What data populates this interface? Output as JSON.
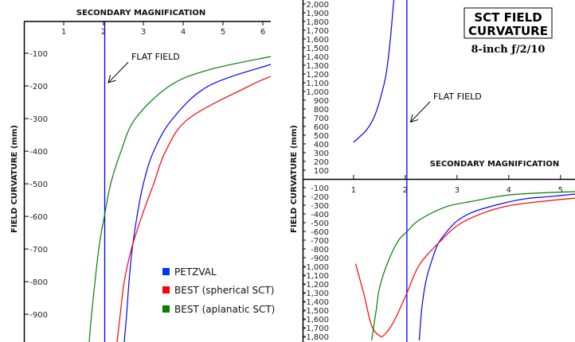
{
  "chart_data": [
    {
      "type": "line",
      "xlabel": "SECONDARY MAGNIFICATION",
      "ylabel": "FIELD CURVATURE (mm)",
      "xlim": [
        0,
        6.2
      ],
      "ylim": [
        -985,
        0
      ],
      "xticks": [
        1,
        2,
        3,
        4,
        5,
        6
      ],
      "xtick_labels": [
        "1",
        "2",
        "3",
        "4",
        "5",
        "6"
      ],
      "yticks": [
        -100,
        -200,
        -300,
        -400,
        -500,
        -600,
        -700,
        -800,
        -900
      ],
      "ytick_labels": [
        "-100",
        "-200",
        "-300",
        "-400",
        "-500",
        "-600",
        "-700",
        "-800",
        "-900"
      ],
      "grid": false,
      "flat_field_x": 2.03,
      "annotation": {
        "text": "FLAT FIELD",
        "x": 2.7,
        "y": -120,
        "arrow_to": [
          2.12,
          -190
        ]
      },
      "legend": {
        "position": "bottom-right",
        "entries": [
          "PETZVAL",
          "BEST (spherical SCT)",
          "BEST (aplanatic SCT)"
        ]
      },
      "series": [
        {
          "name": "PETZVAL",
          "color": "#0000ff",
          "branches": [
            {
              "x": [
                2.52,
                2.58,
                2.64,
                2.72,
                2.84,
                3.0,
                3.26,
                3.74,
                4.64,
                6.2
              ],
              "y": [
                -985,
                -900,
                -800,
                -700,
                -600,
                -500,
                -400,
                -300,
                -200,
                -134
              ]
            }
          ]
        },
        {
          "name": "BEST (spherical SCT)",
          "color": "#ff0000",
          "branches": [
            {
              "x": [
                2.34,
                2.42,
                2.52,
                2.7,
                2.96,
                3.26,
                3.56,
                4.14,
                5.66,
                6.2
              ],
              "y": [
                -985,
                -900,
                -800,
                -700,
                -600,
                -500,
                -400,
                -300,
                -200,
                -171
              ]
            }
          ]
        },
        {
          "name": "BEST (aplanatic SCT)",
          "color": "#008000",
          "branches": [
            {
              "x": [
                1.64,
                1.7,
                1.88,
                2.02,
                2.18,
                2.44,
                2.8,
                3.66,
                4.66,
                6.2
              ],
              "y": [
                -985,
                -900,
                -700,
                -600,
                -500,
                -400,
                -300,
                -200,
                -150,
                -110
              ]
            }
          ]
        }
      ]
    },
    {
      "type": "line",
      "title": "SCT FIELD CURVATURE",
      "subtitle": "8-inch ƒ/2/10",
      "xlabel": "SECONDARY MAGNIFICATION",
      "ylabel": "FIELD CURVATURE (mm)",
      "xlim": [
        0,
        5.28
      ],
      "ylim": [
        -1864,
        2045
      ],
      "xticks": [
        1,
        2,
        3,
        4,
        5
      ],
      "xtick_labels": [
        "1",
        "2",
        "3",
        "4",
        "5"
      ],
      "yticks": [
        2000,
        1900,
        1800,
        1700,
        1600,
        1500,
        1400,
        1300,
        1200,
        1100,
        1000,
        900,
        800,
        700,
        600,
        500,
        400,
        300,
        200,
        100,
        -100,
        -200,
        -300,
        -400,
        -500,
        -600,
        -700,
        -800,
        -900,
        -1000,
        -1100,
        -1200,
        -1300,
        -1400,
        -1500,
        -1600,
        -1700,
        -1800
      ],
      "ytick_labels": [
        "2,000",
        "1,900",
        "1,800",
        "1,700",
        "1,600",
        "1,500",
        "1,400",
        "1,300",
        "1,200",
        "1,100",
        "1,000",
        "900",
        "800",
        "700",
        "600",
        "500",
        "400",
        "300",
        "200",
        "100",
        "-100",
        "-200",
        "-300",
        "-400",
        "-500",
        "-600",
        "-700",
        "-800",
        "-900",
        "-1,000",
        "-1,100",
        "-1,200",
        "-1,300",
        "-1,400",
        "-1,500",
        "-1,600",
        "-1,700",
        "-1,800"
      ],
      "grid": false,
      "flat_field_x": 2.03,
      "annotation": {
        "text": "FLAT FIELD",
        "x": 2.54,
        "y": 910,
        "arrow_to": [
          2.1,
          650
        ]
      },
      "series": [
        {
          "name": "PETZVAL",
          "color": "#0000ff",
          "branches": [
            {
              "x": [
                1.0,
                1.25,
                1.4,
                1.52,
                1.63,
                1.71,
                1.76,
                1.78
              ],
              "y": [
                418,
                560,
                710,
                925,
                1200,
                1590,
                1930,
                2045
              ]
            },
            {
              "x": [
                2.27,
                2.32,
                2.4,
                2.5,
                2.63,
                2.78,
                2.99,
                3.3,
                3.81,
                4.32,
                4.83,
                5.28
              ],
              "y": [
                -1845,
                -1470,
                -1165,
                -955,
                -745,
                -620,
                -485,
                -380,
                -290,
                -227,
                -200,
                -173
              ]
            }
          ]
        },
        {
          "name": "BEST (spherical SCT)",
          "color": "#ff0000",
          "branches": [
            {
              "x": [
                1.04,
                1.2,
                1.35,
                1.5,
                1.58,
                1.76,
                2.02,
                2.27,
                2.68,
                3.05,
                3.55,
                4.06,
                4.83,
                5.28
              ],
              "y": [
                -970,
                -1320,
                -1680,
                -1790,
                -1790,
                -1650,
                -1320,
                -985,
                -710,
                -515,
                -380,
                -300,
                -245,
                -220
              ]
            }
          ]
        },
        {
          "name": "BEST (aplanatic SCT)",
          "color": "#008000",
          "branches": [
            {
              "x": [
                1.35,
                1.43,
                1.5,
                1.66,
                1.86,
                2.02,
                2.27,
                2.78,
                3.3,
                4.06,
                5.28
              ],
              "y": [
                -1845,
                -1530,
                -1250,
                -955,
                -710,
                -610,
                -470,
                -320,
                -255,
                -180,
                -145
              ]
            }
          ]
        }
      ]
    }
  ]
}
